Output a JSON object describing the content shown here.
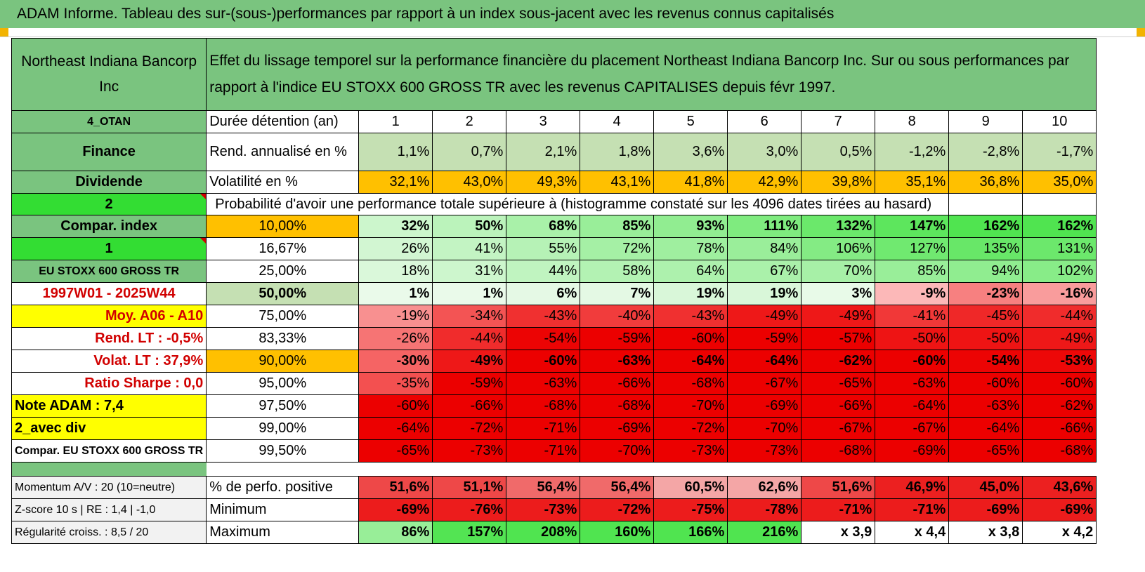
{
  "title": "ADAM Informe. Tableau des sur-(sous-)performances par rapport à un index sous-jacent avec les revenus connus capitalisés",
  "header": {
    "company": "Northeast Indiana Bancorp Inc",
    "description": "Effet du lissage temporel sur la performance financière du placement Northeast Indiana Bancorp Inc. Sur ou sous performances par rapport à l'indice EU STOXX 600 GROSS TR avec les revenus CAPITALISES depuis févr 1997."
  },
  "info": {
    "code": "4_OTAN",
    "sector": "Finance",
    "dividend": "Dividende",
    "mode": "2",
    "compar_index": "Compar. index",
    "index_mode": "1",
    "index_name": "EU STOXX 600 GROSS TR",
    "period": "1997W01 - 2025W44",
    "moy": "Moy. A06 - A10",
    "rend_lt": "Rend. LT :    -0,5%",
    "volat_lt": "Volat. LT :    37,9%",
    "sharpe": "Ratio Sharpe :     0,0",
    "note": "Note ADAM : 7,4",
    "avec_div": "2_avec div",
    "compar_name": "Compar. EU STOXX 600 GROSS TR"
  },
  "rows": {
    "duree_label": "Durée détention (an)",
    "years": [
      "1",
      "2",
      "3",
      "4",
      "5",
      "6",
      "7",
      "8",
      "9",
      "10"
    ],
    "rend_label": "Rend. annualisé en %",
    "rend": [
      "1,1%",
      "0,7%",
      "2,1%",
      "1,8%",
      "3,6%",
      "3,0%",
      "0,5%",
      "-1,2%",
      "-2,8%",
      "-1,7%"
    ],
    "vol_label": "Volatilité en %",
    "vol": [
      "32,1%",
      "43,0%",
      "49,3%",
      "43,1%",
      "41,8%",
      "42,9%",
      "39,8%",
      "35,1%",
      "36,8%",
      "35,0%"
    ],
    "prob_label": "Probabilité d'avoir une performance totale supérieure à (histogramme constaté sur les 4096 dates tirées au hasard)"
  },
  "percentiles": [
    {
      "label": "10,00%",
      "values": [
        "32%",
        "50%",
        "68%",
        "85%",
        "93%",
        "111%",
        "132%",
        "147%",
        "162%",
        "162%"
      ]
    },
    {
      "label": "16,67%",
      "values": [
        "26%",
        "41%",
        "55%",
        "72%",
        "78%",
        "84%",
        "106%",
        "127%",
        "135%",
        "131%"
      ]
    },
    {
      "label": "25,00%",
      "values": [
        "18%",
        "31%",
        "44%",
        "58%",
        "64%",
        "67%",
        "70%",
        "85%",
        "94%",
        "102%"
      ]
    },
    {
      "label": "50,00%",
      "values": [
        "1%",
        "1%",
        "6%",
        "7%",
        "19%",
        "19%",
        "3%",
        "-9%",
        "-23%",
        "-16%"
      ]
    },
    {
      "label": "75,00%",
      "values": [
        "-19%",
        "-34%",
        "-43%",
        "-40%",
        "-43%",
        "-49%",
        "-49%",
        "-41%",
        "-45%",
        "-44%"
      ]
    },
    {
      "label": "83,33%",
      "values": [
        "-26%",
        "-44%",
        "-54%",
        "-59%",
        "-60%",
        "-59%",
        "-57%",
        "-50%",
        "-50%",
        "-49%"
      ]
    },
    {
      "label": "90,00%",
      "values": [
        "-30%",
        "-49%",
        "-60%",
        "-63%",
        "-64%",
        "-64%",
        "-62%",
        "-60%",
        "-54%",
        "-53%"
      ]
    },
    {
      "label": "95,00%",
      "values": [
        "-35%",
        "-59%",
        "-63%",
        "-66%",
        "-68%",
        "-67%",
        "-65%",
        "-63%",
        "-60%",
        "-60%"
      ]
    },
    {
      "label": "97,50%",
      "values": [
        "-60%",
        "-66%",
        "-68%",
        "-68%",
        "-70%",
        "-69%",
        "-66%",
        "-64%",
        "-63%",
        "-62%"
      ]
    },
    {
      "label": "99,00%",
      "values": [
        "-64%",
        "-72%",
        "-71%",
        "-69%",
        "-72%",
        "-70%",
        "-67%",
        "-67%",
        "-64%",
        "-66%"
      ]
    },
    {
      "label": "99,50%",
      "values": [
        "-65%",
        "-73%",
        "-71%",
        "-70%",
        "-73%",
        "-73%",
        "-68%",
        "-69%",
        "-65%",
        "-68%"
      ]
    }
  ],
  "footer": [
    {
      "left": "Momentum A/V : 20 (10=neutre)",
      "label": "% de perfo. positive",
      "values": [
        "51,6%",
        "51,1%",
        "56,4%",
        "56,4%",
        "60,5%",
        "62,6%",
        "51,6%",
        "46,9%",
        "45,0%",
        "43,6%"
      ]
    },
    {
      "left": "Z-score 10 s | RE : 1,4 | -1,0",
      "label": "Minimum",
      "values": [
        "-69%",
        "-76%",
        "-73%",
        "-72%",
        "-75%",
        "-78%",
        "-71%",
        "-71%",
        "-69%",
        "-69%"
      ]
    },
    {
      "left": "Régularité croiss. : 8,5 / 20",
      "label": "Maximum",
      "values": [
        "86%",
        "157%",
        "208%",
        "160%",
        "166%",
        "216%",
        "x 3,9",
        "x 4,4",
        "x 3,8",
        "x 4,2"
      ]
    }
  ],
  "colors": {
    "title_green": "#7ac47f",
    "light_green": "#c5e0b3",
    "bright_green": "#33dd33",
    "yellow": "#ffff00",
    "orange": "#ffc000",
    "label_red": "#d10000"
  }
}
